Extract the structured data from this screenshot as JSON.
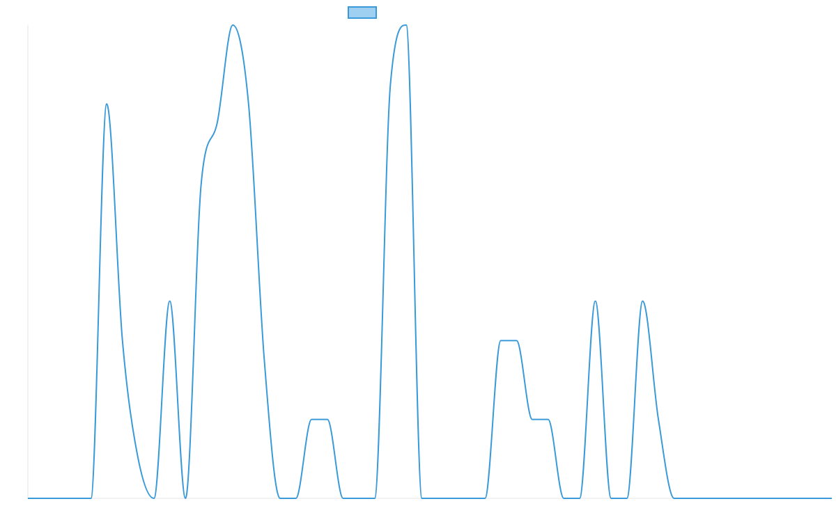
{
  "colors": {
    "series_stroke": "#3a9ad9",
    "series_fill": "#9fd0f2",
    "axis": "#e6e6e6",
    "background": "#ffffff"
  },
  "chart_data": {
    "type": "line",
    "title": "",
    "xlabel": "",
    "ylabel": "",
    "grid": false,
    "legend_position": "top",
    "x": [
      0,
      4,
      5,
      6,
      7,
      8,
      9,
      10,
      11,
      12,
      13,
      14,
      15,
      16,
      17,
      18,
      19,
      20,
      21,
      22,
      23,
      24,
      25,
      26,
      27,
      28,
      29,
      30,
      31,
      32,
      33,
      34,
      35,
      36,
      37,
      38,
      39,
      40,
      41,
      42,
      43,
      44,
      45,
      46,
      47,
      48,
      49,
      50,
      51
    ],
    "series": [
      {
        "name": "",
        "values": [
          0,
          0,
          1,
          0.4,
          0.1,
          0,
          0.5,
          0,
          0.8,
          0.95,
          1.2,
          1,
          0.35,
          0,
          0,
          0.2,
          0.2,
          0,
          0,
          0,
          1.05,
          1.2,
          0,
          0,
          0,
          0,
          0,
          0.4,
          0.4,
          0.2,
          0.2,
          0,
          0,
          0.5,
          0,
          0,
          0.5,
          0.2,
          0,
          0,
          0,
          0,
          0,
          0,
          0,
          0,
          0,
          0,
          0
        ]
      }
    ],
    "ylim": [
      0,
      1.2
    ],
    "xlim": [
      0,
      51
    ]
  }
}
